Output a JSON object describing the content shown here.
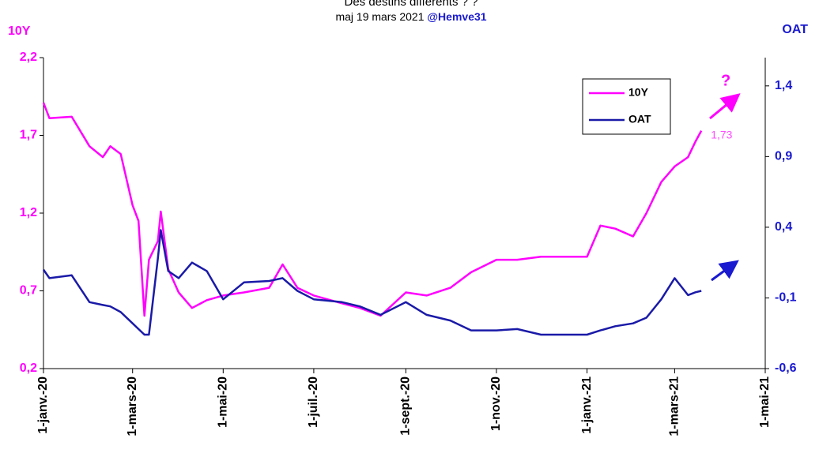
{
  "chart_data": {
    "type": "line",
    "title": "Des destins différents ? ?",
    "subtitle": "maj 19 mars 2021",
    "source": "@Hemve31",
    "ylabel": "10Y",
    "y2label": "OAT",
    "x": [
      "2020-01-01",
      "2020-01-05",
      "2020-01-20",
      "2020-02-01",
      "2020-02-10",
      "2020-02-15",
      "2020-02-22",
      "2020-03-01",
      "2020-03-05",
      "2020-03-09",
      "2020-03-12",
      "2020-03-18",
      "2020-03-20",
      "2020-03-25",
      "2020-04-01",
      "2020-04-10",
      "2020-04-20",
      "2020-05-01",
      "2020-05-15",
      "2020-06-01",
      "2020-06-10",
      "2020-06-20",
      "2020-07-01",
      "2020-07-20",
      "2020-08-01",
      "2020-08-15",
      "2020-09-01",
      "2020-09-15",
      "2020-10-01",
      "2020-10-15",
      "2020-11-01",
      "2020-11-15",
      "2020-12-01",
      "2020-12-15",
      "2021-01-01",
      "2021-01-10",
      "2021-01-20",
      "2021-02-01",
      "2021-02-10",
      "2021-02-20",
      "2021-03-01",
      "2021-03-10",
      "2021-03-15",
      "2021-03-19"
    ],
    "series": [
      {
        "name": "10Y",
        "color": "#ff00ff",
        "axis": "y",
        "values": [
          1.91,
          1.81,
          1.82,
          1.63,
          1.56,
          1.63,
          1.58,
          1.25,
          1.15,
          0.54,
          0.9,
          1.02,
          1.21,
          0.84,
          0.69,
          0.59,
          0.64,
          0.67,
          0.69,
          0.72,
          0.87,
          0.72,
          0.67,
          0.62,
          0.59,
          0.54,
          0.69,
          0.67,
          0.72,
          0.82,
          0.9,
          0.9,
          0.92,
          0.92,
          0.92,
          1.12,
          1.1,
          1.05,
          1.2,
          1.4,
          1.5,
          1.56,
          1.66,
          1.73
        ],
        "value_labels": [
          null,
          null,
          null,
          null,
          null,
          null,
          null,
          null,
          null,
          null,
          null,
          null,
          null,
          null,
          null,
          null,
          null,
          null,
          null,
          null,
          null,
          null,
          null,
          null,
          null,
          null,
          null,
          null,
          null,
          null,
          null,
          null,
          null,
          null,
          null,
          null,
          null,
          null,
          null,
          null,
          null,
          null,
          null,
          "1,73"
        ]
      },
      {
        "name": "OAT",
        "color": "#1a1aa8",
        "axis": "y2",
        "values": [
          0.1,
          0.04,
          0.06,
          -0.13,
          -0.15,
          -0.16,
          -0.2,
          -0.28,
          -0.32,
          -0.36,
          -0.36,
          0.18,
          0.38,
          0.09,
          0.04,
          0.15,
          0.09,
          -0.11,
          0.01,
          0.02,
          0.04,
          -0.05,
          -0.11,
          -0.13,
          -0.16,
          -0.22,
          -0.13,
          -0.22,
          -0.26,
          -0.33,
          -0.33,
          -0.32,
          -0.36,
          -0.36,
          -0.36,
          -0.33,
          -0.3,
          -0.28,
          -0.24,
          -0.11,
          0.04,
          -0.08,
          -0.06,
          -0.05
        ]
      }
    ],
    "xlim": [
      "2020-01-01",
      "2021-05-01"
    ],
    "xticks": [
      {
        "value": "2020-01-01",
        "label": "1-janv.-20"
      },
      {
        "value": "2020-03-01",
        "label": "1-mars-20"
      },
      {
        "value": "2020-05-01",
        "label": "1-mai-20"
      },
      {
        "value": "2020-07-01",
        "label": "1-juil.-20"
      },
      {
        "value": "2020-09-01",
        "label": "1-sept.-20"
      },
      {
        "value": "2020-11-01",
        "label": "1-nov.-20"
      },
      {
        "value": "2021-01-01",
        "label": "1-janv.-21"
      },
      {
        "value": "2021-03-01",
        "label": "1-mars-21"
      },
      {
        "value": "2021-05-01",
        "label": "1-mai-21"
      }
    ],
    "ylim": [
      0.2,
      2.2
    ],
    "yticks": [
      {
        "value": 0.2,
        "label": "0,2"
      },
      {
        "value": 0.7,
        "label": "0,7"
      },
      {
        "value": 1.2,
        "label": "1,2"
      },
      {
        "value": 1.7,
        "label": "1,7"
      },
      {
        "value": 2.2,
        "label": "2,2"
      }
    ],
    "y2lim": [
      -0.6,
      1.6
    ],
    "y2ticks": [
      {
        "value": -0.6,
        "label": "-0,6"
      },
      {
        "value": -0.1,
        "label": "-0,1"
      },
      {
        "value": 0.4,
        "label": "0,4"
      },
      {
        "value": 0.9,
        "label": "0,9"
      },
      {
        "value": 1.4,
        "label": "1,4"
      }
    ],
    "annotation": "?",
    "legend": "upper right"
  }
}
